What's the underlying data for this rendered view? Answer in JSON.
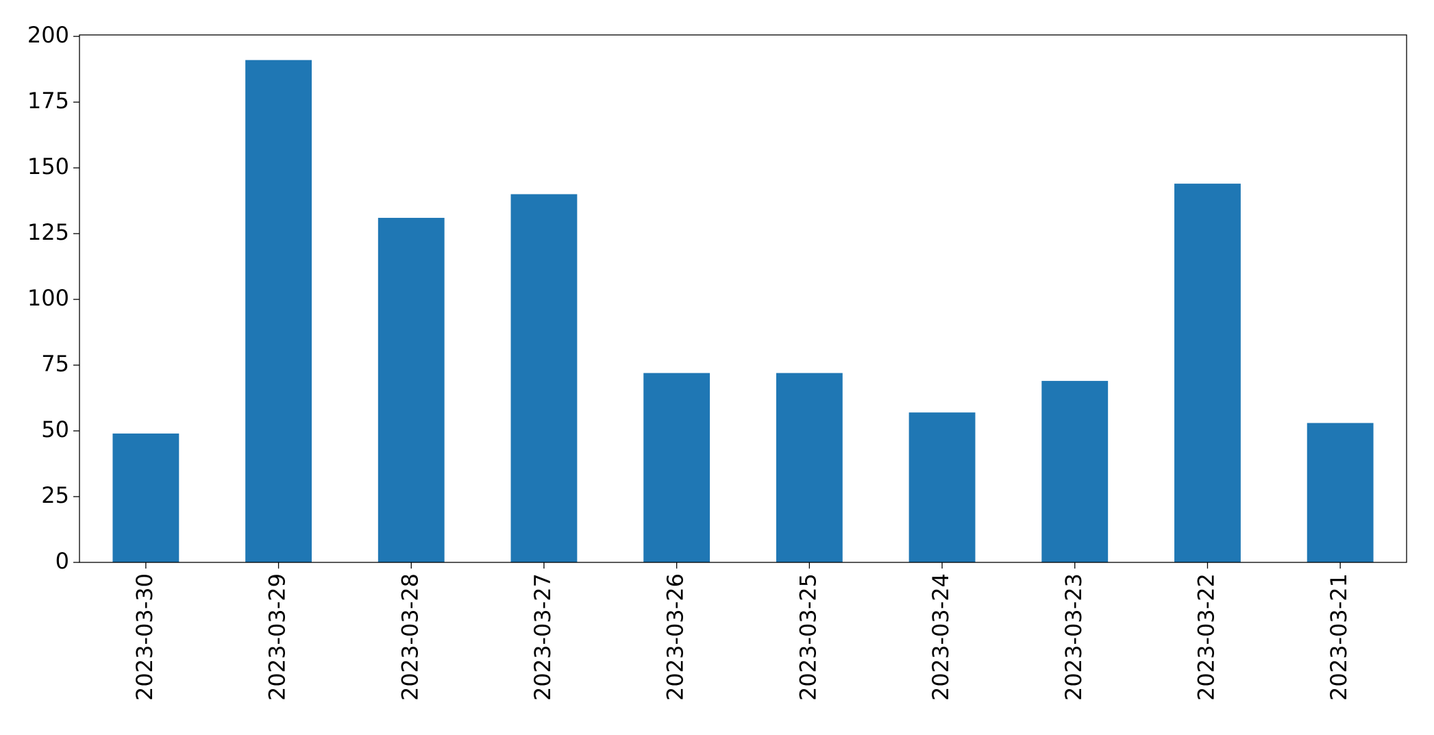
{
  "chart_data": {
    "type": "bar",
    "categories": [
      "2023-03-30",
      "2023-03-29",
      "2023-03-28",
      "2023-03-27",
      "2023-03-26",
      "2023-03-25",
      "2023-03-24",
      "2023-03-23",
      "2023-03-22",
      "2023-03-21"
    ],
    "values": [
      49,
      191,
      131,
      140,
      72,
      72,
      57,
      69,
      144,
      53
    ],
    "color": "#1f77b4",
    "ylim": [
      0,
      200.55
    ],
    "yticks": [
      0,
      25,
      50,
      75,
      100,
      125,
      150,
      175,
      200
    ],
    "grid": false
  }
}
